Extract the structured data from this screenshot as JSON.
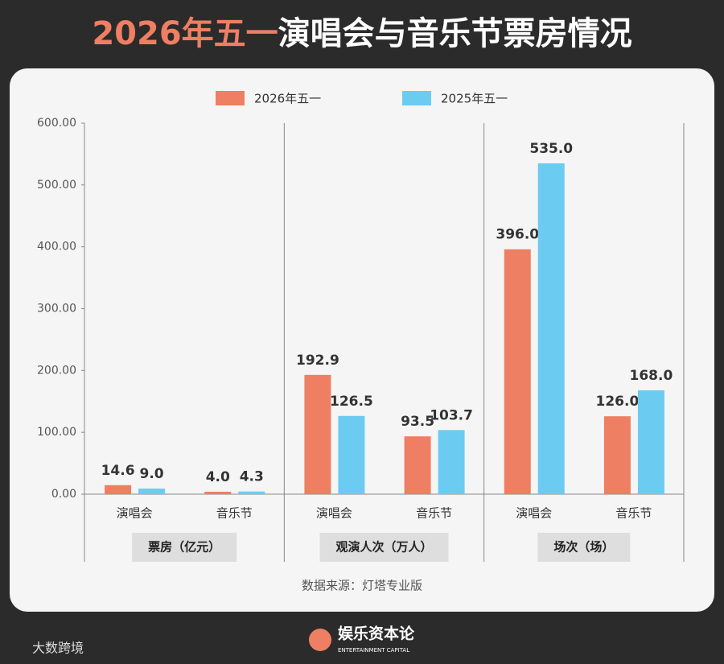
{
  "title_highlight": "2026年五一",
  "title_rest": "演唱会与音乐节票房情况",
  "chart_data": {
    "type": "bar",
    "categories": [
      "演唱会",
      "音乐节",
      "演唱会",
      "音乐节",
      "演唱会",
      "音乐节"
    ],
    "groups": [
      "票房（亿元）",
      "观演人次（万人）",
      "场次（场）"
    ],
    "series": [
      {
        "name": "2026年五一",
        "color": "#ee7f63",
        "values": [
          14.6,
          4.0,
          192.9,
          93.5,
          396.0,
          126.0
        ],
        "value_labels": [
          "14.6",
          "4.0",
          "192.9",
          "93.5",
          "396.0",
          "126.0"
        ]
      },
      {
        "name": "2025年五一",
        "color": "#6ccbf0",
        "values": [
          9.0,
          4.3,
          126.5,
          103.7,
          535.0,
          168.0
        ],
        "value_labels": [
          "9.0",
          "4.3",
          "126.5",
          "103.7",
          "535.0",
          "168.0"
        ]
      }
    ],
    "ylim": [
      0,
      600
    ],
    "yticks": [
      {
        "value": 0,
        "label": "0.00"
      },
      {
        "value": 100,
        "label": "100.00"
      },
      {
        "value": 200,
        "label": "200.00"
      },
      {
        "value": 300,
        "label": "300.00"
      },
      {
        "value": 400,
        "label": "400.00"
      },
      {
        "value": 500,
        "label": "500.00"
      },
      {
        "value": 600,
        "label": "600.00"
      }
    ],
    "grid": false,
    "source": "数据来源：灯塔专业版"
  },
  "footer": {
    "brand": "娱乐资本论",
    "brand_en": "ENTERTAINMENT CAPITAL",
    "watermark": "大数跨境"
  }
}
